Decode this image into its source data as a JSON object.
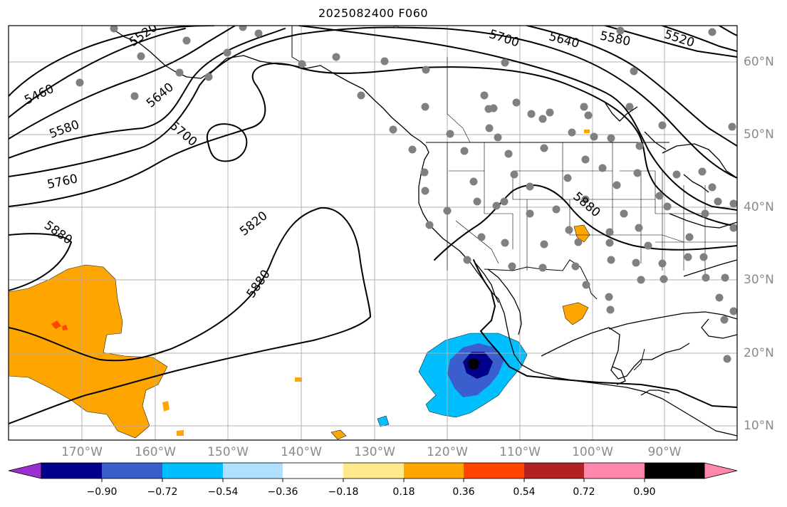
{
  "map": {
    "title": "2025082400 F060",
    "lon_labels": [
      "170°W",
      "160°W",
      "150°W",
      "140°W",
      "130°W",
      "120°W",
      "110°W",
      "100°W",
      "90°W"
    ],
    "lat_labels": [
      "60°N",
      "50°N",
      "40°N",
      "30°N",
      "20°N",
      "10°N"
    ],
    "contour_labels": [
      "5460",
      "5520",
      "5580",
      "5640",
      "5700",
      "5760",
      "5820",
      "5880",
      "5880",
      "5880",
      "5580",
      "5640",
      "5700",
      "5520"
    ],
    "colorbar": {
      "tick_labels": [
        "−0.90",
        "−0.72",
        "−0.54",
        "−0.36",
        "−0.18",
        "0.18",
        "0.36",
        "0.54",
        "0.72",
        "0.90"
      ],
      "colors": [
        "#9b30d0",
        "#00008b",
        "#3a5fcd",
        "#00bfff",
        "#b0e0ff",
        "#ffffff",
        "#ffe98a",
        "#ffa500",
        "#ff4500",
        "#b22222",
        "#ff88aa"
      ]
    },
    "station_marker_color": "#808080",
    "anomaly_colors": {
      "positive": "#ffa500",
      "positive_strong": "#ff4500",
      "negative_weak": "#00bfff",
      "negative": "#3a5fcd",
      "negative_strong": "#00008b"
    }
  }
}
